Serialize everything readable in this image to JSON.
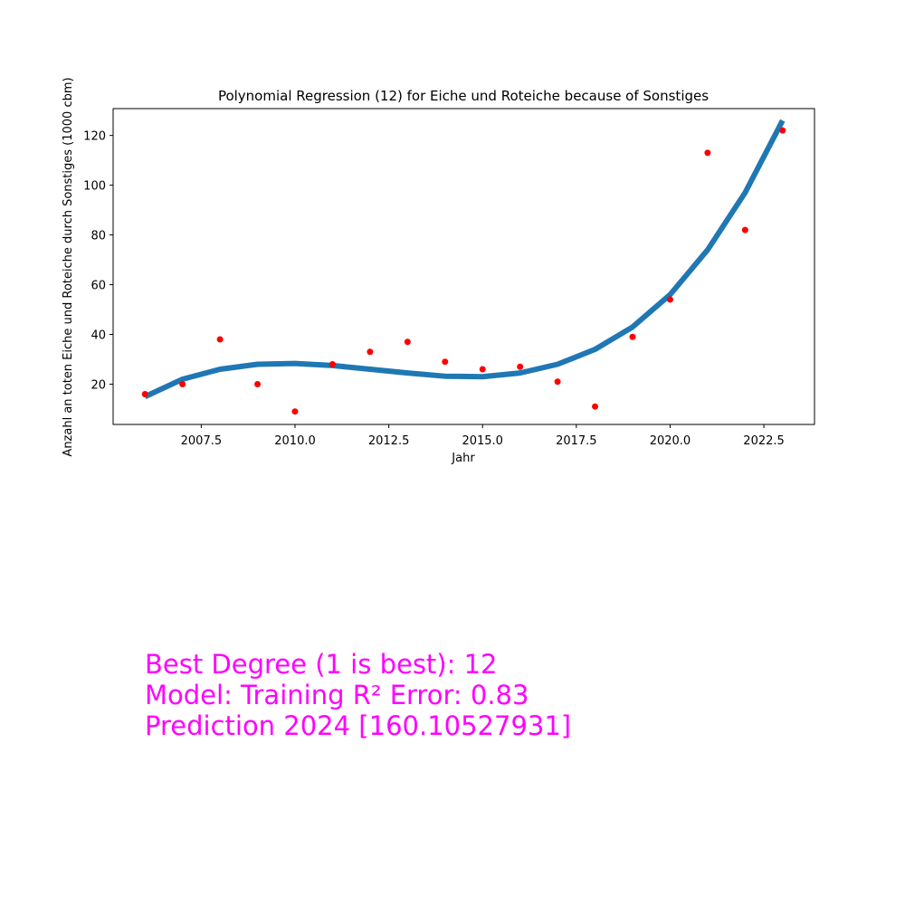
{
  "chart_data": {
    "type": "scatter",
    "title": "Polynomial Regression (12) for Eiche und Roteiche because of Sonstiges",
    "xlabel": "Jahr",
    "ylabel": "Anzahl an toten Eiche und Roteiche durch Sonstiges (1000 cbm)",
    "xlim": [
      2005.15,
      2023.85
    ],
    "ylim": [
      3.8,
      130.8
    ],
    "xticks": [
      2007.5,
      2010.0,
      2012.5,
      2015.0,
      2017.5,
      2020.0,
      2022.5
    ],
    "xtick_labels": [
      "2007.5",
      "2010.0",
      "2012.5",
      "2015.0",
      "2017.5",
      "2020.0",
      "2022.5"
    ],
    "yticks": [
      20,
      40,
      60,
      80,
      100,
      120
    ],
    "ytick_labels": [
      "20",
      "40",
      "60",
      "80",
      "100",
      "120"
    ],
    "grid": false,
    "series": [
      {
        "kind": "scatter",
        "color": "#ff0000",
        "x": [
          2006,
          2007,
          2008,
          2009,
          2010,
          2011,
          2012,
          2013,
          2014,
          2015,
          2016,
          2017,
          2018,
          2019,
          2020,
          2021,
          2022,
          2023
        ],
        "y": [
          16,
          20,
          38,
          20,
          9,
          28,
          33,
          37,
          29,
          26,
          27,
          21,
          11,
          39,
          54,
          113,
          82,
          122
        ]
      },
      {
        "kind": "line",
        "color": "#1f77b4",
        "x": [
          2006,
          2007,
          2008,
          2009,
          2010,
          2011,
          2012,
          2013,
          2014,
          2015,
          2016,
          2017,
          2018,
          2019,
          2020,
          2021,
          2022,
          2023
        ],
        "y": [
          15,
          22,
          26,
          28,
          28.3,
          27.5,
          26,
          24.5,
          23.2,
          23,
          24.5,
          28,
          34,
          43,
          56,
          74,
          97,
          126
        ]
      }
    ]
  },
  "annotations": {
    "color": "#ff00ff",
    "line1": "Best Degree (1 is best): 12",
    "line2": "Model: Training R² Error: 0.83",
    "line3": "Prediction 2024 [160.10527931]"
  }
}
